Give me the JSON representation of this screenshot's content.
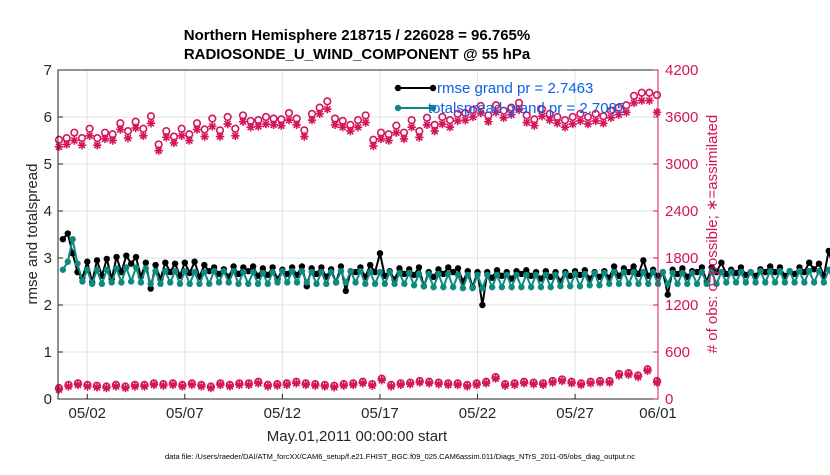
{
  "chart_data": {
    "type": "line",
    "title": "Northern Hemisphere 218715 / 226028 = 96.765%",
    "subtitle": "RADIOSONDE_U_WIND_COMPONENT @ 55 hPa",
    "xlabel": "May.01,2011 00:00:00 start",
    "ylabel_left": "rmse and totalspread",
    "ylabel_right": "# of obs: o=possible; ∗=assimilated",
    "footer": "data file: /Users/raeder/DAI/ATM_forcXX/CAM6_setup/f.e21.FHIST_BGC.f09_025.CAM6assim.011/Diags_NTrS_2011-05/obs_diag_output.nc",
    "xlim": [
      0.5,
      31.25
    ],
    "ylim_left": [
      0,
      7
    ],
    "ylim_right": [
      0,
      4200
    ],
    "x_ticks": [
      2,
      7,
      12,
      17,
      22,
      27,
      32
    ],
    "x_tick_labels": [
      "05/02",
      "05/07",
      "05/12",
      "05/17",
      "05/22",
      "05/27",
      "06/01"
    ],
    "y_ticks_left": [
      0,
      1,
      2,
      3,
      4,
      5,
      6,
      7
    ],
    "y_ticks_right": [
      0,
      600,
      1200,
      1800,
      2400,
      3000,
      3600,
      4200
    ],
    "grid": true,
    "legend": {
      "location": "top-right",
      "entries": [
        "rmse grand pr = 2.7463",
        "totalspread grand pr = 2.7085"
      ]
    },
    "colors": {
      "rmse": "#000000",
      "totalspread": "#0f8a80",
      "obs": "#d4145a",
      "legend_text": "#0a62e8"
    },
    "time_start": 0.75,
    "time_step": 0.25,
    "series": [
      {
        "name": "rmse",
        "axis": "left",
        "values": [
          3.4,
          3.52,
          3.1,
          2.7,
          2.58,
          2.92,
          2.48,
          2.95,
          2.62,
          2.98,
          2.55,
          3.02,
          2.7,
          3.05,
          2.88,
          3.02,
          2.6,
          2.9,
          2.35,
          2.85,
          2.55,
          2.9,
          2.7,
          2.88,
          2.62,
          2.9,
          2.68,
          2.92,
          2.6,
          2.85,
          2.72,
          2.8,
          2.66,
          2.76,
          2.6,
          2.82,
          2.66,
          2.8,
          2.72,
          2.82,
          2.62,
          2.78,
          2.64,
          2.8,
          2.55,
          2.75,
          2.66,
          2.8,
          2.64,
          2.82,
          2.4,
          2.78,
          2.66,
          2.8,
          2.6,
          2.76,
          2.48,
          2.82,
          2.3,
          2.72,
          2.7,
          2.8,
          2.6,
          2.85,
          2.7,
          3.1,
          2.62,
          2.72,
          2.54,
          2.78,
          2.66,
          2.76,
          2.64,
          2.8,
          2.4,
          2.7,
          2.6,
          2.76,
          2.66,
          2.8,
          2.7,
          2.78,
          2.5,
          2.72,
          2.38,
          2.7,
          2.0,
          2.7,
          2.58,
          2.74,
          2.62,
          2.7,
          2.56,
          2.72,
          2.66,
          2.74,
          2.62,
          2.7,
          2.56,
          2.72,
          2.6,
          2.7,
          2.5,
          2.7,
          2.62,
          2.72,
          2.64,
          2.74,
          2.56,
          2.7,
          2.6,
          2.72,
          2.58,
          2.82,
          2.62,
          2.78,
          2.7,
          2.82,
          2.66,
          2.95,
          2.62,
          2.75,
          2.62,
          2.7,
          2.22,
          2.75,
          2.66,
          2.78,
          2.6,
          2.72,
          2.7,
          2.8,
          2.5,
          2.8,
          2.7,
          2.9,
          2.66,
          2.75,
          2.68,
          2.8,
          2.64,
          2.7,
          2.62,
          2.76,
          2.7,
          2.82,
          2.7,
          2.8,
          2.62,
          2.72,
          2.66,
          2.8,
          2.7,
          2.9,
          2.76,
          2.88,
          2.62,
          3.15,
          2.76,
          2.9,
          2.74,
          2.8,
          2.68,
          2.82,
          2.72,
          2.8,
          2.72,
          2.86,
          2.62,
          2.9,
          2.7,
          2.95,
          2.76,
          3.0,
          2.8,
          2.95,
          2.74,
          2.9,
          2.8,
          2.65
        ],
        "marker": "filled-circle"
      },
      {
        "name": "totalspread",
        "axis": "left",
        "values": [
          2.75,
          2.92,
          3.4,
          2.88,
          2.5,
          2.75,
          2.45,
          2.75,
          2.45,
          2.75,
          2.48,
          2.78,
          2.48,
          2.8,
          2.5,
          2.8,
          2.48,
          2.78,
          2.45,
          2.72,
          2.45,
          2.72,
          2.48,
          2.72,
          2.45,
          2.72,
          2.45,
          2.7,
          2.45,
          2.7,
          2.45,
          2.72,
          2.48,
          2.72,
          2.48,
          2.72,
          2.45,
          2.7,
          2.45,
          2.7,
          2.45,
          2.68,
          2.45,
          2.7,
          2.48,
          2.72,
          2.48,
          2.72,
          2.48,
          2.72,
          2.48,
          2.7,
          2.45,
          2.7,
          2.45,
          2.7,
          2.48,
          2.72,
          2.48,
          2.72,
          2.48,
          2.72,
          2.45,
          2.7,
          2.45,
          2.7,
          2.45,
          2.7,
          2.45,
          2.68,
          2.45,
          2.68,
          2.42,
          2.66,
          2.4,
          2.66,
          2.38,
          2.66,
          2.38,
          2.66,
          2.38,
          2.64,
          2.36,
          2.64,
          2.36,
          2.64,
          2.36,
          2.64,
          2.38,
          2.64,
          2.38,
          2.64,
          2.38,
          2.64,
          2.38,
          2.64,
          2.38,
          2.64,
          2.38,
          2.64,
          2.38,
          2.64,
          2.4,
          2.66,
          2.4,
          2.66,
          2.4,
          2.66,
          2.42,
          2.68,
          2.42,
          2.68,
          2.45,
          2.7,
          2.45,
          2.7,
          2.45,
          2.7,
          2.45,
          2.7,
          2.45,
          2.7,
          2.45,
          2.7,
          2.45,
          2.68,
          2.45,
          2.68,
          2.45,
          2.68,
          2.45,
          2.7,
          2.45,
          2.7,
          2.45,
          2.7,
          2.48,
          2.7,
          2.48,
          2.7,
          2.48,
          2.7,
          2.48,
          2.72,
          2.48,
          2.72,
          2.48,
          2.72,
          2.48,
          2.72,
          2.48,
          2.72,
          2.48,
          2.72,
          2.48,
          2.72,
          2.48,
          2.75,
          2.5,
          2.75,
          2.5,
          2.75,
          2.5,
          2.75,
          2.5,
          2.75,
          2.5,
          2.78,
          2.5,
          2.78,
          2.52,
          2.8,
          2.52,
          2.8,
          2.52,
          2.8,
          2.52,
          2.78,
          2.5,
          2.48
        ],
        "marker": "filled-circle"
      },
      {
        "name": "obs_possible",
        "axis": "right",
        "marker": "open-circle",
        "values": [
          3310,
          3330,
          3400,
          3330,
          3450,
          3330,
          3400,
          3380,
          3520,
          3420,
          3540,
          3450,
          3610,
          3250,
          3420,
          3350,
          3450,
          3380,
          3520,
          3440,
          3580,
          3430,
          3600,
          3450,
          3620,
          3550,
          3560,
          3600,
          3580,
          3570,
          3650,
          3580,
          3430,
          3640,
          3720,
          3800,
          3580,
          3550,
          3500,
          3560,
          3620,
          3310,
          3400,
          3380,
          3490,
          3400,
          3560,
          3420,
          3590,
          3500,
          3600,
          3560,
          3640,
          3650,
          3690,
          3740,
          3620,
          3750,
          3680,
          3720,
          3780,
          3620,
          3570,
          3700,
          3640,
          3600,
          3560,
          3600,
          3640,
          3600,
          3640,
          3610,
          3680,
          3720,
          3750,
          3870,
          3910,
          3910,
          3880
        ]
      },
      {
        "name": "obs_assimilated",
        "axis": "right",
        "marker": "asterisk",
        "values": [
          3220,
          3250,
          3300,
          3240,
          3360,
          3240,
          3320,
          3300,
          3440,
          3330,
          3460,
          3360,
          3520,
          3170,
          3340,
          3270,
          3360,
          3300,
          3440,
          3350,
          3480,
          3350,
          3510,
          3360,
          3540,
          3470,
          3480,
          3510,
          3500,
          3490,
          3560,
          3500,
          3350,
          3560,
          3640,
          3700,
          3500,
          3470,
          3420,
          3470,
          3530,
          3230,
          3320,
          3300,
          3400,
          3320,
          3470,
          3340,
          3500,
          3420,
          3510,
          3470,
          3550,
          3560,
          3600,
          3650,
          3540,
          3660,
          3590,
          3630,
          3690,
          3530,
          3490,
          3610,
          3560,
          3520,
          3470,
          3510,
          3550,
          3510,
          3550,
          3520,
          3590,
          3630,
          3660,
          3780,
          3810,
          3810,
          3660
        ]
      },
      {
        "name": "obs_low_possible",
        "axis": "right",
        "marker": "open-circle",
        "values": [
          140,
          180,
          200,
          180,
          170,
          160,
          180,
          160,
          180,
          180,
          200,
          190,
          200,
          180,
          200,
          180,
          160,
          200,
          180,
          200,
          200,
          220,
          180,
          190,
          200,
          220,
          200,
          190,
          180,
          170,
          190,
          200,
          220,
          190,
          260,
          180,
          200,
          210,
          230,
          220,
          210,
          200,
          200,
          180,
          200,
          220,
          280,
          190,
          200,
          220,
          210,
          200,
          230,
          250,
          220,
          200,
          220,
          230,
          230,
          320,
          330,
          300,
          380,
          230
        ]
      },
      {
        "name": "obs_low_assimilated",
        "axis": "right",
        "marker": "asterisk",
        "values": [
          120,
          160,
          180,
          160,
          150,
          140,
          160,
          140,
          160,
          160,
          180,
          170,
          180,
          160,
          180,
          160,
          140,
          180,
          160,
          180,
          180,
          200,
          160,
          170,
          180,
          200,
          180,
          170,
          160,
          150,
          170,
          180,
          200,
          170,
          240,
          160,
          180,
          190,
          210,
          200,
          190,
          180,
          180,
          160,
          180,
          200,
          260,
          170,
          180,
          200,
          190,
          180,
          210,
          230,
          200,
          180,
          200,
          210,
          210,
          300,
          310,
          280,
          360,
          210
        ]
      }
    ]
  }
}
